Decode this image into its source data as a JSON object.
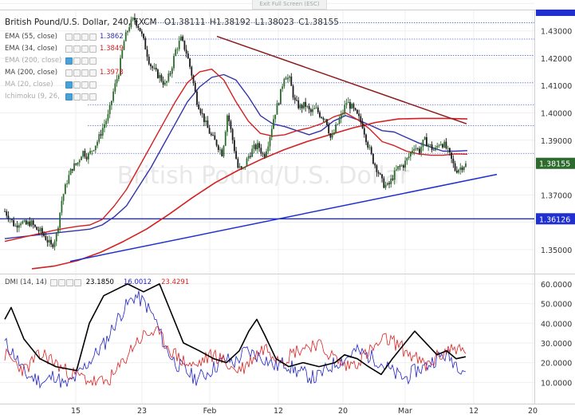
{
  "toast": "Exit Full Screen (ESC)",
  "header": {
    "symbol": "British Pound/U.S. Dollar, 240, FXCM",
    "o": "O1.38111",
    "h": "H1.38192",
    "l": "L1.38023",
    "c": "C1.38155"
  },
  "indicators": [
    {
      "name": "EMA (55, close)",
      "value": "1.3862",
      "color": "#3333aa",
      "dim": false
    },
    {
      "name": "EMA (34, close)",
      "value": "1.3849",
      "color": "#d42020",
      "dim": false
    },
    {
      "name": "EMA (200, close)",
      "value": "",
      "color": "#aaaaaa",
      "dim": true
    },
    {
      "name": "MA (200, close)",
      "value": "1.3978",
      "color": "#d42020",
      "dim": false
    },
    {
      "name": "MA (20, close)",
      "value": "",
      "color": "#aaaaaa",
      "dim": true
    },
    {
      "name": "Ichimoku (9, 26, 52, 26)",
      "value": "",
      "color": "#aaaaaa",
      "dim": true
    }
  ],
  "watermark": "British Pound/U.S. Dollar",
  "dmi": {
    "name": "DMI (14, 14)",
    "adx": "23.1850",
    "plus_di": "16.0012",
    "minus_di": "23.4291",
    "adx_color": "#000000",
    "plus_color": "#2222cc",
    "minus_color": "#e02020",
    "ticks": [
      "60.0000",
      "50.0000",
      "40.0000",
      "30.0000",
      "20.0000",
      "10.0000"
    ]
  },
  "colors": {
    "up": "#2d6a2d",
    "down": "#1a1a1a",
    "ema55": "#3333aa",
    "ema34": "#d42020",
    "ma200": "#d42020",
    "support_line": "#1f2fd0",
    "resistance_line": "#8b1a1a",
    "horizontal": "#1f2fd0",
    "price_tag": "#1f2fd0",
    "last_tag": "#2d6a2d"
  },
  "chart_data": {
    "type": "candlestick",
    "instrument": "British Pound/U.S. Dollar",
    "timeframe": "240",
    "x_tick_labels": [
      "15",
      "23",
      "Feb",
      "12",
      "20",
      "Mar",
      "12",
      "20"
    ],
    "y_tick_labels": [
      "1.43000",
      "1.42000",
      "1.41000",
      "1.40000",
      "1.39000",
      "1.37000",
      "1.35000"
    ],
    "ylim": [
      1.3415,
      1.4375
    ],
    "price_tags": [
      {
        "label": "1.38155",
        "value": 1.38155
      },
      {
        "label": "1.36126",
        "value": 1.36126
      }
    ],
    "horizontal_level": 1.36126,
    "dotted_levels": [
      1.433,
      1.427,
      1.421,
      1.411,
      1.403,
      1.3953,
      1.3852
    ],
    "close_path": [
      1.364,
      1.3615,
      1.3585,
      1.3605,
      1.359,
      1.36,
      1.3575,
      1.3565,
      1.354,
      1.351,
      1.3555,
      1.368,
      1.375,
      1.38,
      1.3815,
      1.386,
      1.384,
      1.387,
      1.39,
      1.395,
      1.399,
      1.408,
      1.415,
      1.426,
      1.432,
      1.4345,
      1.431,
      1.425,
      1.418,
      1.415,
      1.413,
      1.41,
      1.415,
      1.423,
      1.427,
      1.4225,
      1.415,
      1.405,
      1.4,
      1.395,
      1.391,
      1.3885,
      1.385,
      1.4,
      1.39,
      1.38,
      1.379,
      1.384,
      1.387,
      1.388,
      1.384,
      1.39,
      1.399,
      1.405,
      1.414,
      1.412,
      1.404,
      1.402,
      1.403,
      1.4,
      1.4015,
      1.399,
      1.398,
      1.39,
      1.395,
      1.399,
      1.404,
      1.402,
      1.399,
      1.396,
      1.389,
      1.383,
      1.379,
      1.374,
      1.373,
      1.377,
      1.38,
      1.381,
      1.384,
      1.388,
      1.386,
      1.39,
      1.388,
      1.386,
      1.3895,
      1.388,
      1.384,
      1.379,
      1.38,
      1.3815
    ],
    "ema55": [
      1.354,
      1.3545,
      1.355,
      1.3555,
      1.356,
      1.3565,
      1.357,
      1.3575,
      1.359,
      1.362,
      1.366,
      1.373,
      1.38,
      1.388,
      1.396,
      1.404,
      1.4095,
      1.413,
      1.414,
      1.412,
      1.406,
      1.399,
      1.396,
      1.395,
      1.3935,
      1.392,
      1.3935,
      1.397,
      1.399,
      1.3975,
      1.3955,
      1.3935,
      1.393,
      1.391,
      1.389,
      1.3875,
      1.386,
      1.386,
      1.3862
    ],
    "ema34": [
      1.353,
      1.354,
      1.355,
      1.356,
      1.357,
      1.3578,
      1.3585,
      1.359,
      1.361,
      1.366,
      1.372,
      1.38,
      1.388,
      1.396,
      1.404,
      1.411,
      1.415,
      1.416,
      1.412,
      1.404,
      1.397,
      1.3925,
      1.3915,
      1.392,
      1.3935,
      1.3945,
      1.396,
      1.3985,
      1.4,
      1.3975,
      1.394,
      1.3895,
      1.388,
      1.386,
      1.385,
      1.3845,
      1.3845,
      1.385,
      1.3849
    ],
    "ma200": [
      1.343,
      1.344,
      1.346,
      1.349,
      1.353,
      1.3575,
      1.363,
      1.369,
      1.3745,
      1.379,
      1.383,
      1.3865,
      1.3895,
      1.392,
      1.3945,
      1.3965,
      1.3978,
      1.398,
      1.398,
      1.3978
    ],
    "support_line": {
      "from": 1.3457,
      "to": 1.3775
    },
    "resistance_line": {
      "from": 1.428,
      "to": 1.396
    }
  }
}
